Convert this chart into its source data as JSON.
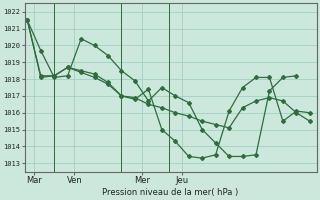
{
  "background_color": "#cce8dd",
  "grid_color": "#99ccbb",
  "line_color": "#2d6e3a",
  "title": "Pression niveau de la mer( hPa )",
  "xtick_labels": [
    "Mar",
    "Ven",
    "Mer",
    "Jeu"
  ],
  "xtick_positions": [
    0.5,
    3.5,
    8.5,
    11.5
  ],
  "vline_positions": [
    2.0,
    7.0,
    10.5
  ],
  "ylim": [
    1012.5,
    1022.5
  ],
  "yticks": [
    1013,
    1014,
    1015,
    1016,
    1017,
    1018,
    1019,
    1020,
    1021,
    1022
  ],
  "series1_x": [
    0,
    1,
    2,
    3,
    4,
    5,
    6,
    7,
    8,
    9,
    10,
    11,
    12,
    13,
    14,
    15,
    16,
    17,
    18,
    19,
    20
  ],
  "series1_y": [
    1021.5,
    1019.7,
    1018.1,
    1018.2,
    1020.4,
    1020.0,
    1019.4,
    1018.5,
    1017.9,
    1016.7,
    1017.5,
    1017.0,
    1016.6,
    1015.0,
    1014.2,
    1013.4,
    1013.4,
    1013.5,
    1017.3,
    1018.1,
    1018.2
  ],
  "series2_x": [
    0,
    1,
    2,
    3,
    4,
    5,
    6,
    7,
    8,
    9,
    10,
    11,
    12,
    13,
    14,
    15,
    16,
    17,
    18,
    19,
    20,
    21
  ],
  "series2_y": [
    1021.5,
    1018.1,
    1018.2,
    1018.7,
    1018.5,
    1018.3,
    1017.8,
    1017.0,
    1016.9,
    1016.5,
    1016.3,
    1016.0,
    1015.8,
    1015.5,
    1015.3,
    1015.1,
    1016.3,
    1016.7,
    1016.9,
    1016.7,
    1016.0,
    1015.5
  ],
  "series3_x": [
    0,
    1,
    2,
    3,
    4,
    5,
    6,
    7,
    8,
    9,
    10,
    11,
    12,
    13,
    14,
    15,
    16,
    17,
    18,
    19,
    20,
    21
  ],
  "series3_y": [
    1021.5,
    1018.2,
    1018.2,
    1018.7,
    1018.4,
    1018.1,
    1017.7,
    1017.0,
    1016.8,
    1017.4,
    1015.0,
    1014.3,
    1013.4,
    1013.3,
    1013.5,
    1016.1,
    1017.5,
    1018.1,
    1018.1,
    1015.5,
    1016.1,
    1016.0
  ],
  "xlim": [
    -0.2,
    21.5
  ],
  "n_points": 22
}
